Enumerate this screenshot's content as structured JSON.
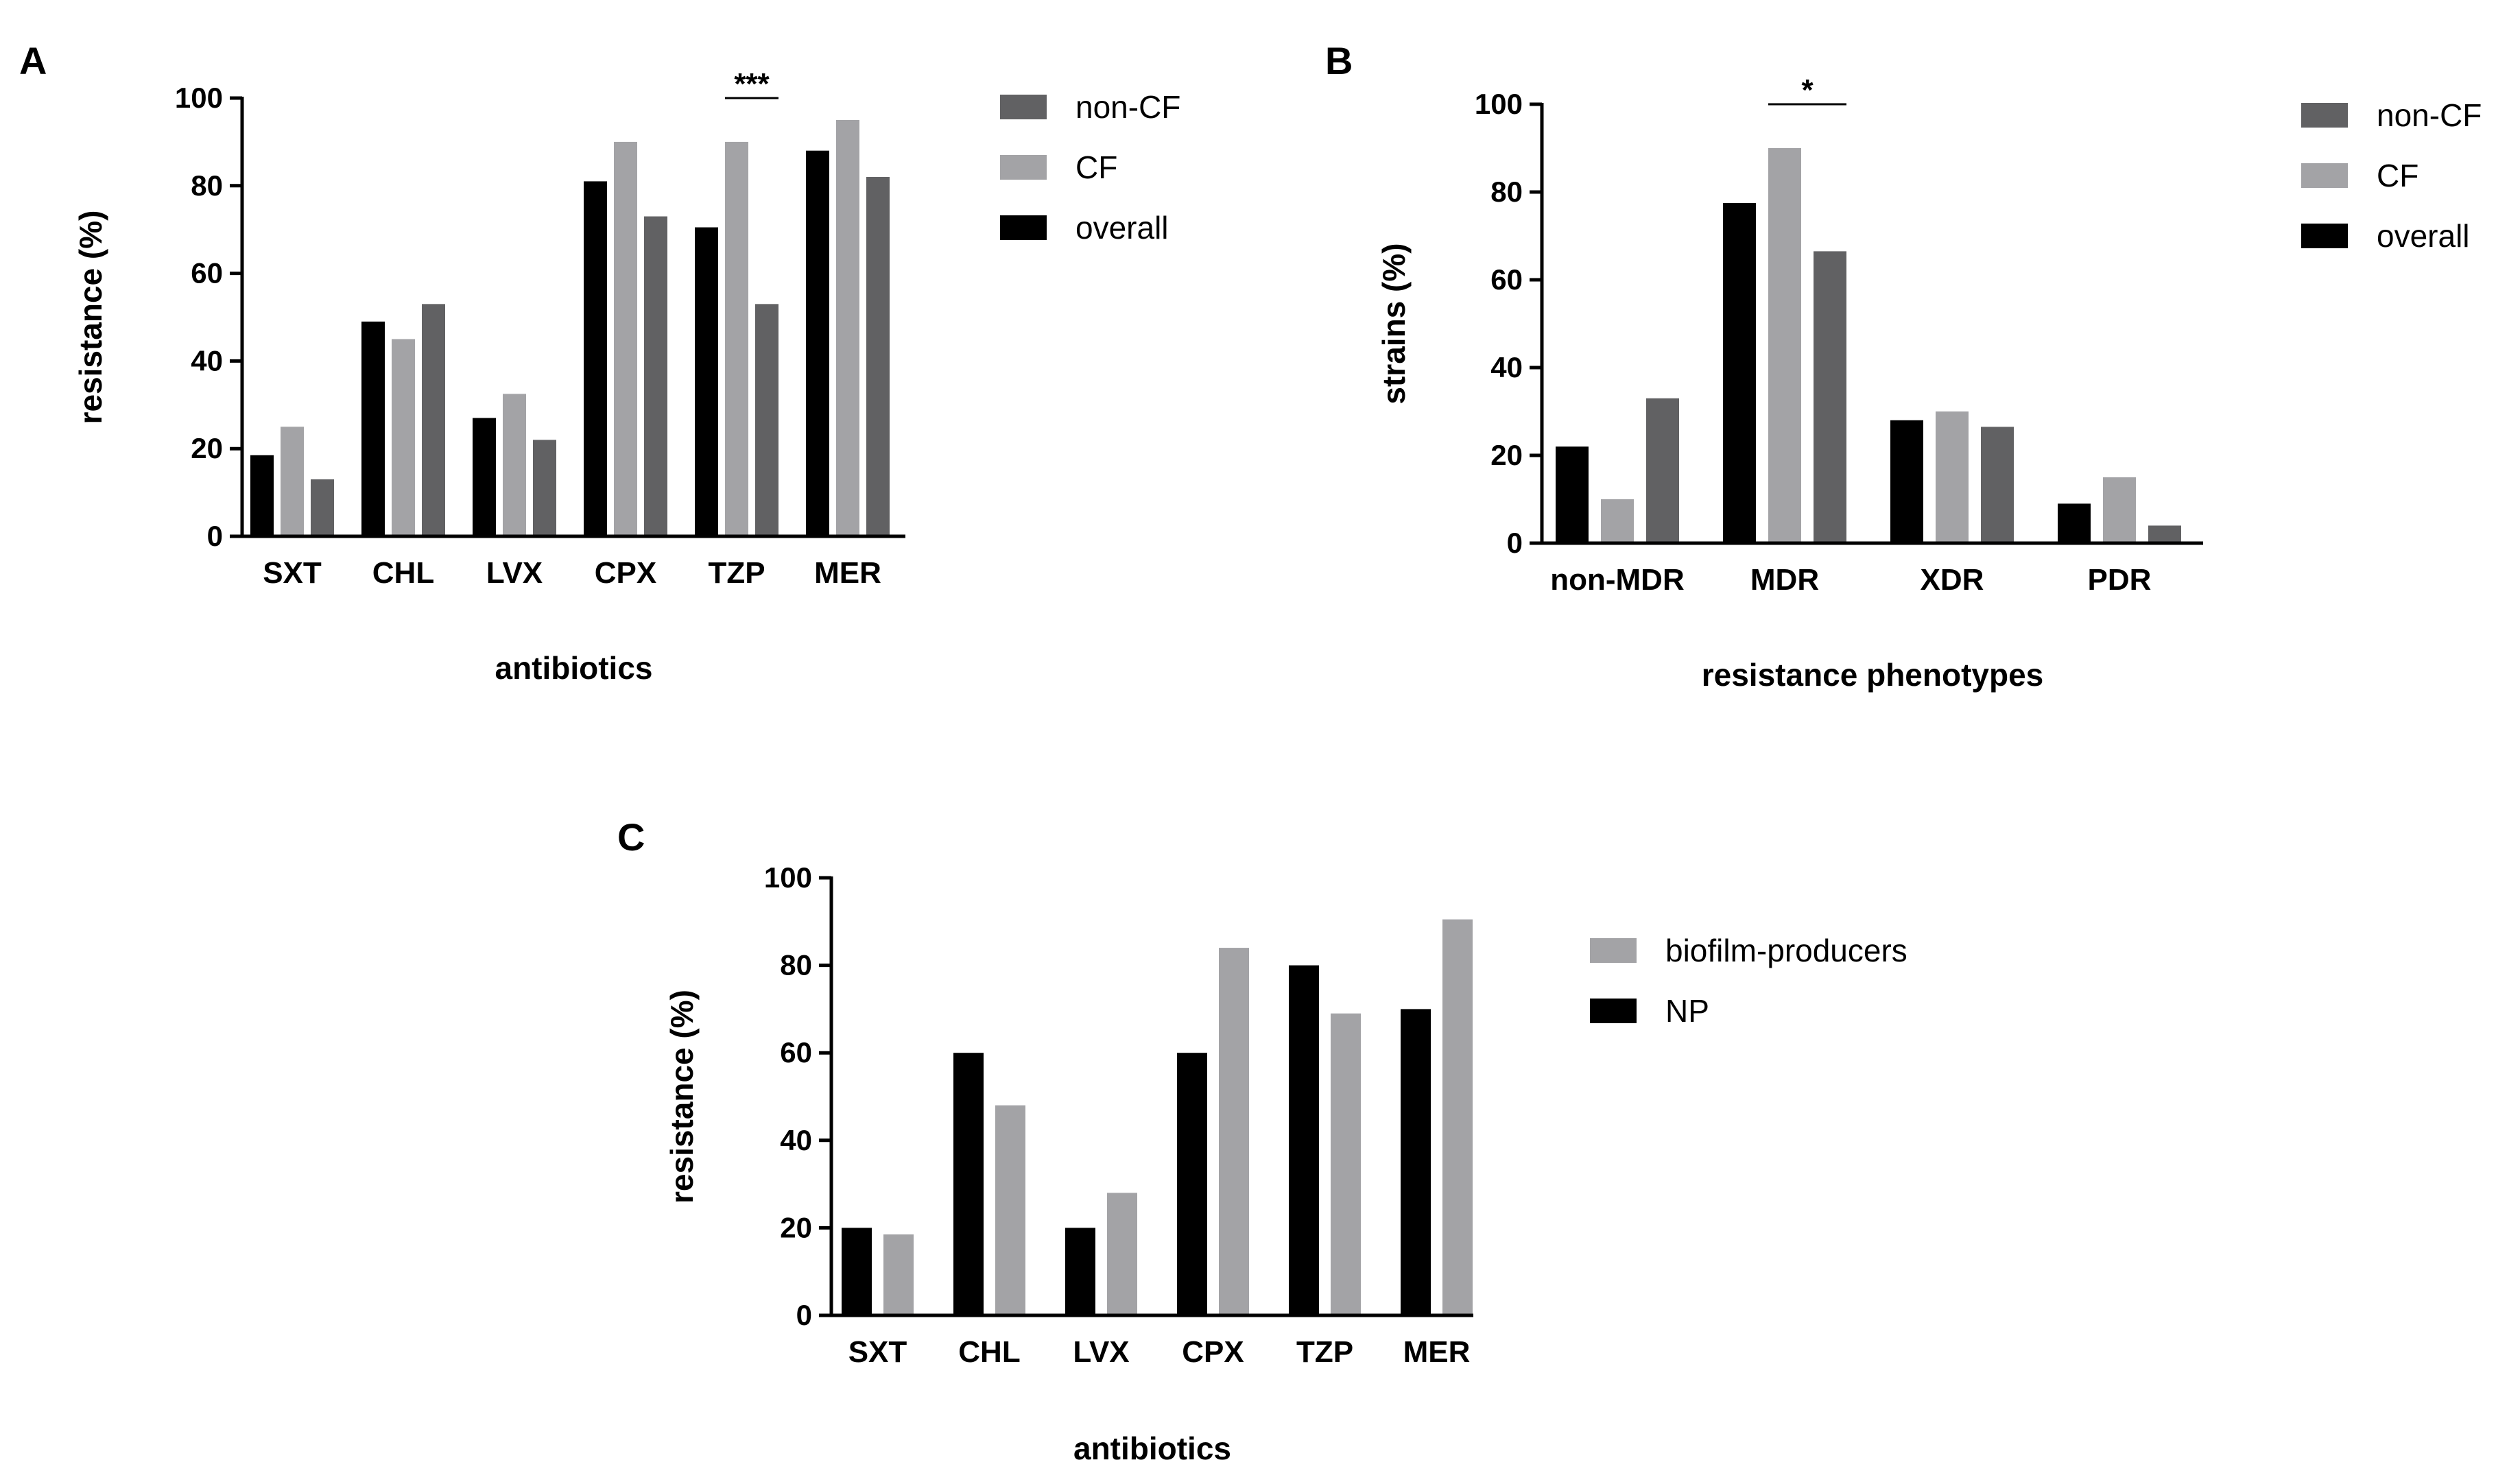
{
  "chart_data": [
    {
      "panel": "A",
      "type": "bar",
      "categories": [
        "SXT",
        "CHL",
        "LVX",
        "CPX",
        "TZP",
        "MER"
      ],
      "series": [
        {
          "name": "overall",
          "color": "#000000",
          "values": [
            18.5,
            49,
            27,
            81,
            70.5,
            88
          ]
        },
        {
          "name": "CF",
          "color": "#a3a3a6",
          "values": [
            25,
            45,
            32.5,
            90,
            90,
            95
          ]
        },
        {
          "name": "non-CF",
          "color": "#616163",
          "values": [
            13,
            53,
            22,
            73,
            53,
            82
          ]
        }
      ],
      "legend_order": [
        "non-CF",
        "CF",
        "overall"
      ],
      "xlabel": "antibiotics",
      "ylabel": "resistance (%)",
      "ylim": [
        0,
        100
      ],
      "yticks": [
        "0",
        "20",
        "40",
        "60",
        "80",
        "100"
      ],
      "annotations": [
        {
          "category": "TZP",
          "text": "***"
        }
      ]
    },
    {
      "panel": "B",
      "type": "bar",
      "categories": [
        "non-MDR",
        "MDR",
        "XDR",
        "PDR"
      ],
      "series": [
        {
          "name": "overall",
          "color": "#000000",
          "values": [
            22,
            77.5,
            28,
            9
          ]
        },
        {
          "name": "CF",
          "color": "#a3a3a6",
          "values": [
            10,
            90,
            30,
            15
          ]
        },
        {
          "name": "non-CF",
          "color": "#616163",
          "values": [
            33,
            66.5,
            26.5,
            4
          ]
        }
      ],
      "legend_order": [
        "non-CF",
        "CF",
        "overall"
      ],
      "xlabel": "resistance phenotypes",
      "ylabel": "strains (%)",
      "ylim": [
        0,
        100
      ],
      "yticks": [
        "0",
        "20",
        "40",
        "60",
        "80",
        "100"
      ],
      "annotations": [
        {
          "category": "MDR",
          "text": "*"
        }
      ]
    },
    {
      "panel": "C",
      "type": "bar",
      "categories": [
        "SXT",
        "CHL",
        "LVX",
        "CPX",
        "TZP",
        "MER"
      ],
      "series": [
        {
          "name": "NP",
          "color": "#000000",
          "values": [
            20,
            60,
            20,
            60,
            80,
            70
          ]
        },
        {
          "name": "biofilm-producers",
          "color": "#a3a3a6",
          "values": [
            18.5,
            48,
            28,
            84,
            69,
            90.5
          ]
        }
      ],
      "legend_order": [
        "biofilm-producers",
        "NP"
      ],
      "xlabel": "antibiotics",
      "ylabel": "resistance (%)",
      "ylim": [
        0,
        100
      ],
      "yticks": [
        "0",
        "20",
        "40",
        "60",
        "80",
        "100"
      ],
      "annotations": []
    }
  ]
}
